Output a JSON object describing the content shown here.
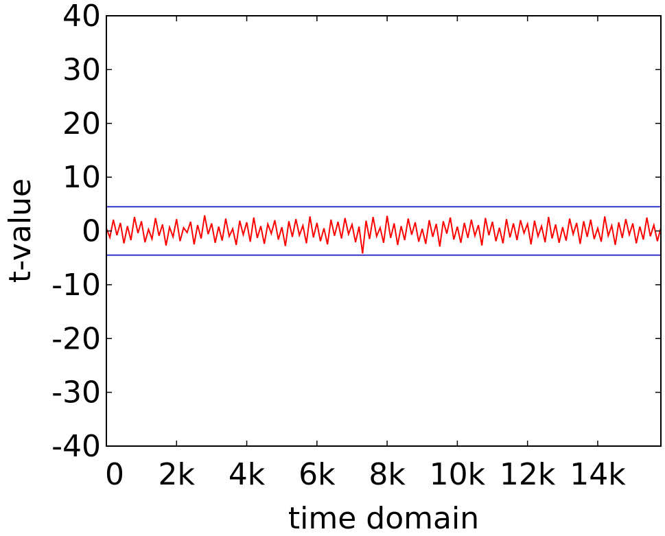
{
  "chart_data": {
    "type": "line",
    "xlabel": "time domain",
    "ylabel": "t-value",
    "x": [
      0,
      100,
      200,
      300,
      400,
      500,
      600,
      700,
      800,
      900,
      1000,
      1100,
      1200,
      1300,
      1400,
      1500,
      1600,
      1700,
      1800,
      1900,
      2000,
      2100,
      2200,
      2300,
      2400,
      2500,
      2600,
      2700,
      2800,
      2900,
      3000,
      3100,
      3200,
      3300,
      3400,
      3500,
      3600,
      3700,
      3800,
      3900,
      4000,
      4100,
      4200,
      4300,
      4400,
      4500,
      4600,
      4700,
      4800,
      4900,
      5000,
      5100,
      5200,
      5300,
      5400,
      5500,
      5600,
      5700,
      5800,
      5900,
      6000,
      6100,
      6200,
      6300,
      6400,
      6500,
      6600,
      6700,
      6800,
      6900,
      7000,
      7100,
      7200,
      7300,
      7400,
      7500,
      7600,
      7700,
      7800,
      7900,
      8000,
      8100,
      8200,
      8300,
      8400,
      8500,
      8600,
      8700,
      8800,
      8900,
      9000,
      9100,
      9200,
      9300,
      9400,
      9500,
      9600,
      9700,
      9800,
      9900,
      10000,
      10100,
      10200,
      10300,
      10400,
      10500,
      10600,
      10700,
      10800,
      10900,
      11000,
      11100,
      11200,
      11300,
      11400,
      11500,
      11600,
      11700,
      11800,
      11900,
      12000,
      12100,
      12200,
      12300,
      12400,
      12500,
      12600,
      12700,
      12800,
      12900,
      13000,
      13100,
      13200,
      13300,
      13400,
      13500,
      13600,
      13700,
      13800,
      13900,
      14000,
      14100,
      14200,
      14300,
      14400,
      14500,
      14600,
      14700,
      14800,
      14900,
      15000,
      15100,
      15200,
      15300,
      15400,
      15500,
      15600,
      15700,
      15800
    ],
    "series": [
      {
        "color": "#ff0000",
        "values": [
          0.5,
          -1.2,
          2.1,
          -0.8,
          1.5,
          -2.3,
          0.9,
          -1.7,
          2.6,
          -0.4,
          1.8,
          -2.1,
          0.3,
          -1.5,
          2.4,
          -0.9,
          1.2,
          -2.7,
          0.7,
          -1.1,
          2.2,
          -1.9,
          0.6,
          -0.3,
          1.7,
          -2.5,
          1.1,
          -1.4,
          2.9,
          -0.6,
          1.4,
          -2.2,
          0.8,
          -1.8,
          2.3,
          -1.0,
          0.4,
          -2.6,
          1.9,
          -0.7,
          1.6,
          -2.0,
          2.5,
          -1.3,
          0.9,
          -2.4,
          1.3,
          -0.5,
          2.0,
          -1.6,
          0.7,
          -2.8,
          1.8,
          -1.1,
          2.2,
          -0.8,
          1.0,
          -2.3,
          2.7,
          -1.2,
          1.5,
          -1.9,
          0.5,
          -2.5,
          2.1,
          -0.9,
          1.7,
          -1.4,
          2.4,
          -0.6,
          1.2,
          -2.1,
          0.8,
          -4.2,
          1.9,
          -1.5,
          2.6,
          -1.0,
          0.6,
          -2.2,
          2.8,
          -1.3,
          1.4,
          -2.6,
          0.9,
          -1.7,
          2.3,
          -0.7,
          1.6,
          -2.0,
          0.4,
          -2.4,
          2.0,
          -1.1,
          1.3,
          -2.9,
          1.8,
          -0.5,
          2.5,
          -1.6,
          0.8,
          -2.2,
          1.5,
          -1.3,
          2.1,
          -0.9,
          1.1,
          -2.7,
          2.4,
          -0.8,
          1.7,
          -1.9,
          0.6,
          -2.3,
          2.2,
          -1.2,
          1.4,
          -1.7,
          2.0,
          -0.4,
          1.3,
          -2.5,
          1.9,
          -1.0,
          0.9,
          -2.1,
          2.6,
          -1.4,
          1.2,
          -2.2,
          0.7,
          -1.8,
          2.3,
          -0.6,
          1.5,
          -2.4,
          1.8,
          -1.1,
          2.1,
          -1.5,
          0.5,
          -2.0,
          2.7,
          -0.9,
          1.0,
          -2.6,
          1.6,
          -1.3,
          2.2,
          -0.7,
          1.4,
          -2.3,
          0.8,
          -1.6,
          2.5,
          -1.0,
          1.1,
          -1.9,
          0.6
        ]
      }
    ],
    "thresholds": [
      4.5,
      -4.5
    ],
    "threshold_color": "#3333cc",
    "xlim": [
      0,
      15800
    ],
    "ylim": [
      -40,
      40
    ],
    "xticks": [
      0,
      {
        "value": 2000,
        "label": "2k"
      },
      {
        "value": 4000,
        "label": "4k"
      },
      {
        "value": 6000,
        "label": "6k"
      },
      {
        "value": 8000,
        "label": "8k"
      },
      {
        "value": 10000,
        "label": "10k"
      },
      {
        "value": 12000,
        "label": "12k"
      },
      {
        "value": 14000,
        "label": "14k"
      }
    ],
    "yticks": [
      -40,
      -30,
      -20,
      -10,
      0,
      10,
      20,
      30,
      40
    ]
  }
}
